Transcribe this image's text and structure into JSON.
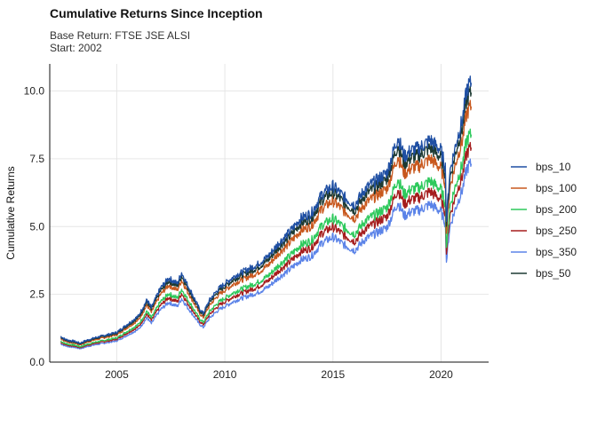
{
  "chart_data": {
    "type": "line",
    "title": "Cumulative Returns Since Inception",
    "subtitle_lines": [
      "Base Return: FTSE JSE ALSI",
      "Start: 2002"
    ],
    "xlabel": "",
    "ylabel": "Cumulative Returns",
    "xlim": [
      2001.9,
      2022.2
    ],
    "ylim": [
      0,
      11.0
    ],
    "x_ticks": [
      2005,
      2010,
      2015,
      2020
    ],
    "x_tick_labels": [
      "2005",
      "2010",
      "2015",
      "2020"
    ],
    "y_ticks": [
      0,
      2.5,
      5,
      7.5,
      10
    ],
    "y_tick_labels": [
      "0.0",
      "2.5",
      "5.0",
      "7.5",
      "10.0"
    ],
    "grid": true,
    "legend_position": "right",
    "legend": [
      "bps_10",
      "bps_100",
      "bps_200",
      "bps_250",
      "bps_350",
      "bps_50"
    ],
    "reference_series": {
      "x": [
        2002.4,
        2002.6,
        2002.8,
        2003.0,
        2003.3,
        2003.6,
        2004.0,
        2004.5,
        2005.0,
        2005.5,
        2006.0,
        2006.4,
        2006.6,
        2007.0,
        2007.4,
        2007.8,
        2008.0,
        2008.3,
        2008.5,
        2008.8,
        2009.0,
        2009.3,
        2009.7,
        2010.0,
        2010.5,
        2011.0,
        2011.5,
        2012.0,
        2012.5,
        2013.0,
        2013.5,
        2014.0,
        2014.5,
        2015.0,
        2015.5,
        2016.0,
        2016.5,
        2017.0,
        2017.5,
        2018.0,
        2018.3,
        2018.6,
        2019.0,
        2019.5,
        2020.0,
        2020.2,
        2020.25,
        2020.4,
        2020.7,
        2021.0,
        2021.2,
        2021.4
      ],
      "values": [
        0.95,
        0.85,
        0.8,
        0.78,
        0.7,
        0.8,
        0.9,
        1.0,
        1.1,
        1.4,
        1.7,
        2.3,
        2.0,
        2.7,
        3.1,
        2.9,
        3.3,
        2.8,
        2.5,
        2.0,
        1.8,
        2.3,
        2.7,
        2.9,
        3.2,
        3.4,
        3.6,
        3.9,
        4.4,
        4.8,
        5.3,
        5.5,
        6.2,
        6.5,
        6.1,
        5.8,
        6.4,
        6.7,
        7.0,
        8.3,
        7.6,
        7.8,
        7.9,
        8.2,
        7.8,
        7.2,
        5.2,
        7.0,
        8.1,
        9.0,
        10.1,
        10.3
      ]
    },
    "series": [
      {
        "name": "bps_10",
        "color": "#1f4fa3",
        "factor": 1.0
      },
      {
        "name": "bps_100",
        "color": "#c8581e",
        "factor": 0.915
      },
      {
        "name": "bps_200",
        "color": "#2ec95c",
        "factor": 0.815
      },
      {
        "name": "bps_250",
        "color": "#a51d1d",
        "factor": 0.768
      },
      {
        "name": "bps_350",
        "color": "#5b83e8",
        "factor": 0.71
      },
      {
        "name": "bps_50",
        "color": "#1d3a33",
        "factor": 0.965
      }
    ]
  }
}
